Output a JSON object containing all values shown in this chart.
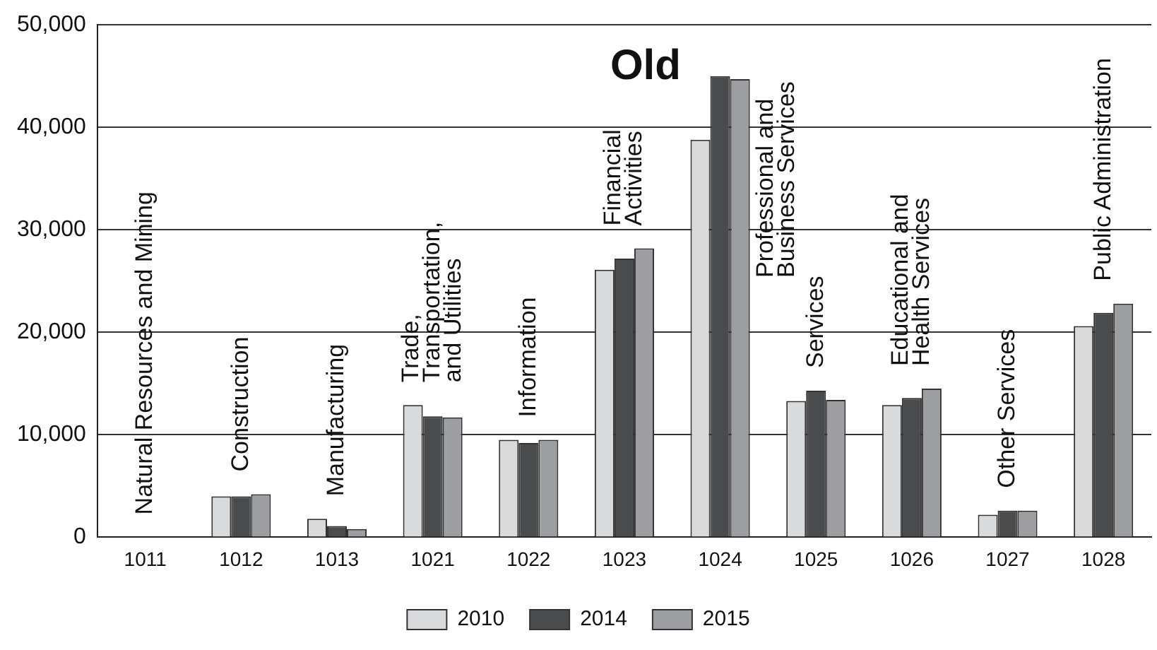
{
  "chart_data": {
    "type": "bar",
    "title": "Old",
    "categories": [
      "1011",
      "1012",
      "1013",
      "1021",
      "1022",
      "1023",
      "1024",
      "1025",
      "1026",
      "1027",
      "1028"
    ],
    "series": [
      {
        "name": "2010",
        "color": "#d9dadc",
        "values": [
          null,
          4000,
          1800,
          12900,
          9500,
          26100,
          38800,
          13300,
          12900,
          2200,
          20600
        ]
      },
      {
        "name": "2014",
        "color": "#4a4b4d",
        "values": [
          null,
          4000,
          1100,
          11800,
          9200,
          27200,
          45000,
          14300,
          13600,
          2600,
          21900
        ]
      },
      {
        "name": "2015",
        "color": "#9d9ea2",
        "values": [
          null,
          4200,
          800,
          11700,
          9500,
          28200,
          44700,
          13400,
          14500,
          2600,
          22800
        ]
      }
    ],
    "ylim": [
      0,
      50000
    ],
    "yticks": [
      {
        "value": 0,
        "label": "0"
      },
      {
        "value": 10000,
        "label": "10,000"
      },
      {
        "value": 20000,
        "label": "20,000"
      },
      {
        "value": 30000,
        "label": "30,000"
      },
      {
        "value": 40000,
        "label": "40,000"
      },
      {
        "value": 50000,
        "label": "50,000"
      }
    ],
    "grid": "y",
    "legend": "bottom",
    "annotations": [
      "Natural Resources and Mining",
      "Construction",
      "Manufacturing",
      "Trade,\nTransportation,\nand Utilities",
      "Information",
      "Financial\nActivities",
      "Professional and\nBusiness Services",
      "Services",
      "Educational and\nHealth Services",
      "Other Services",
      "Public Administration"
    ]
  }
}
